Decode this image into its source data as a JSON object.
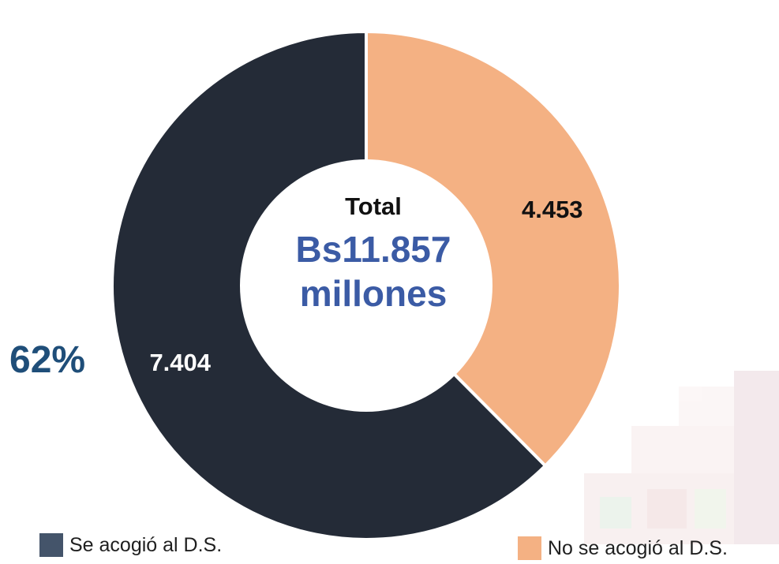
{
  "chart_data": {
    "type": "pie",
    "donut": true,
    "unit": "millones",
    "center_label": {
      "line1": "Total",
      "line2": "Bs11.857",
      "line3": "millones"
    },
    "slices": [
      {
        "label": "No se acogió al D.S.",
        "value": 4453,
        "display": "4.453",
        "color": "#f4b183",
        "label_color": "#111111"
      },
      {
        "label": "Se acogió al D.S.",
        "value": 7404,
        "display": "7.404",
        "color": "#242b37",
        "label_color": "#ffffff"
      }
    ],
    "percentage_callout": "62%",
    "legend": [
      {
        "label": "Se acogió al D.S.",
        "color": "#44546a"
      },
      {
        "label": "No se acogió al D.S.",
        "color": "#f4b183"
      }
    ]
  },
  "colors": {
    "center_total": "#111111",
    "center_amount": "#3b5ba5",
    "callout": "#1f4e79"
  }
}
